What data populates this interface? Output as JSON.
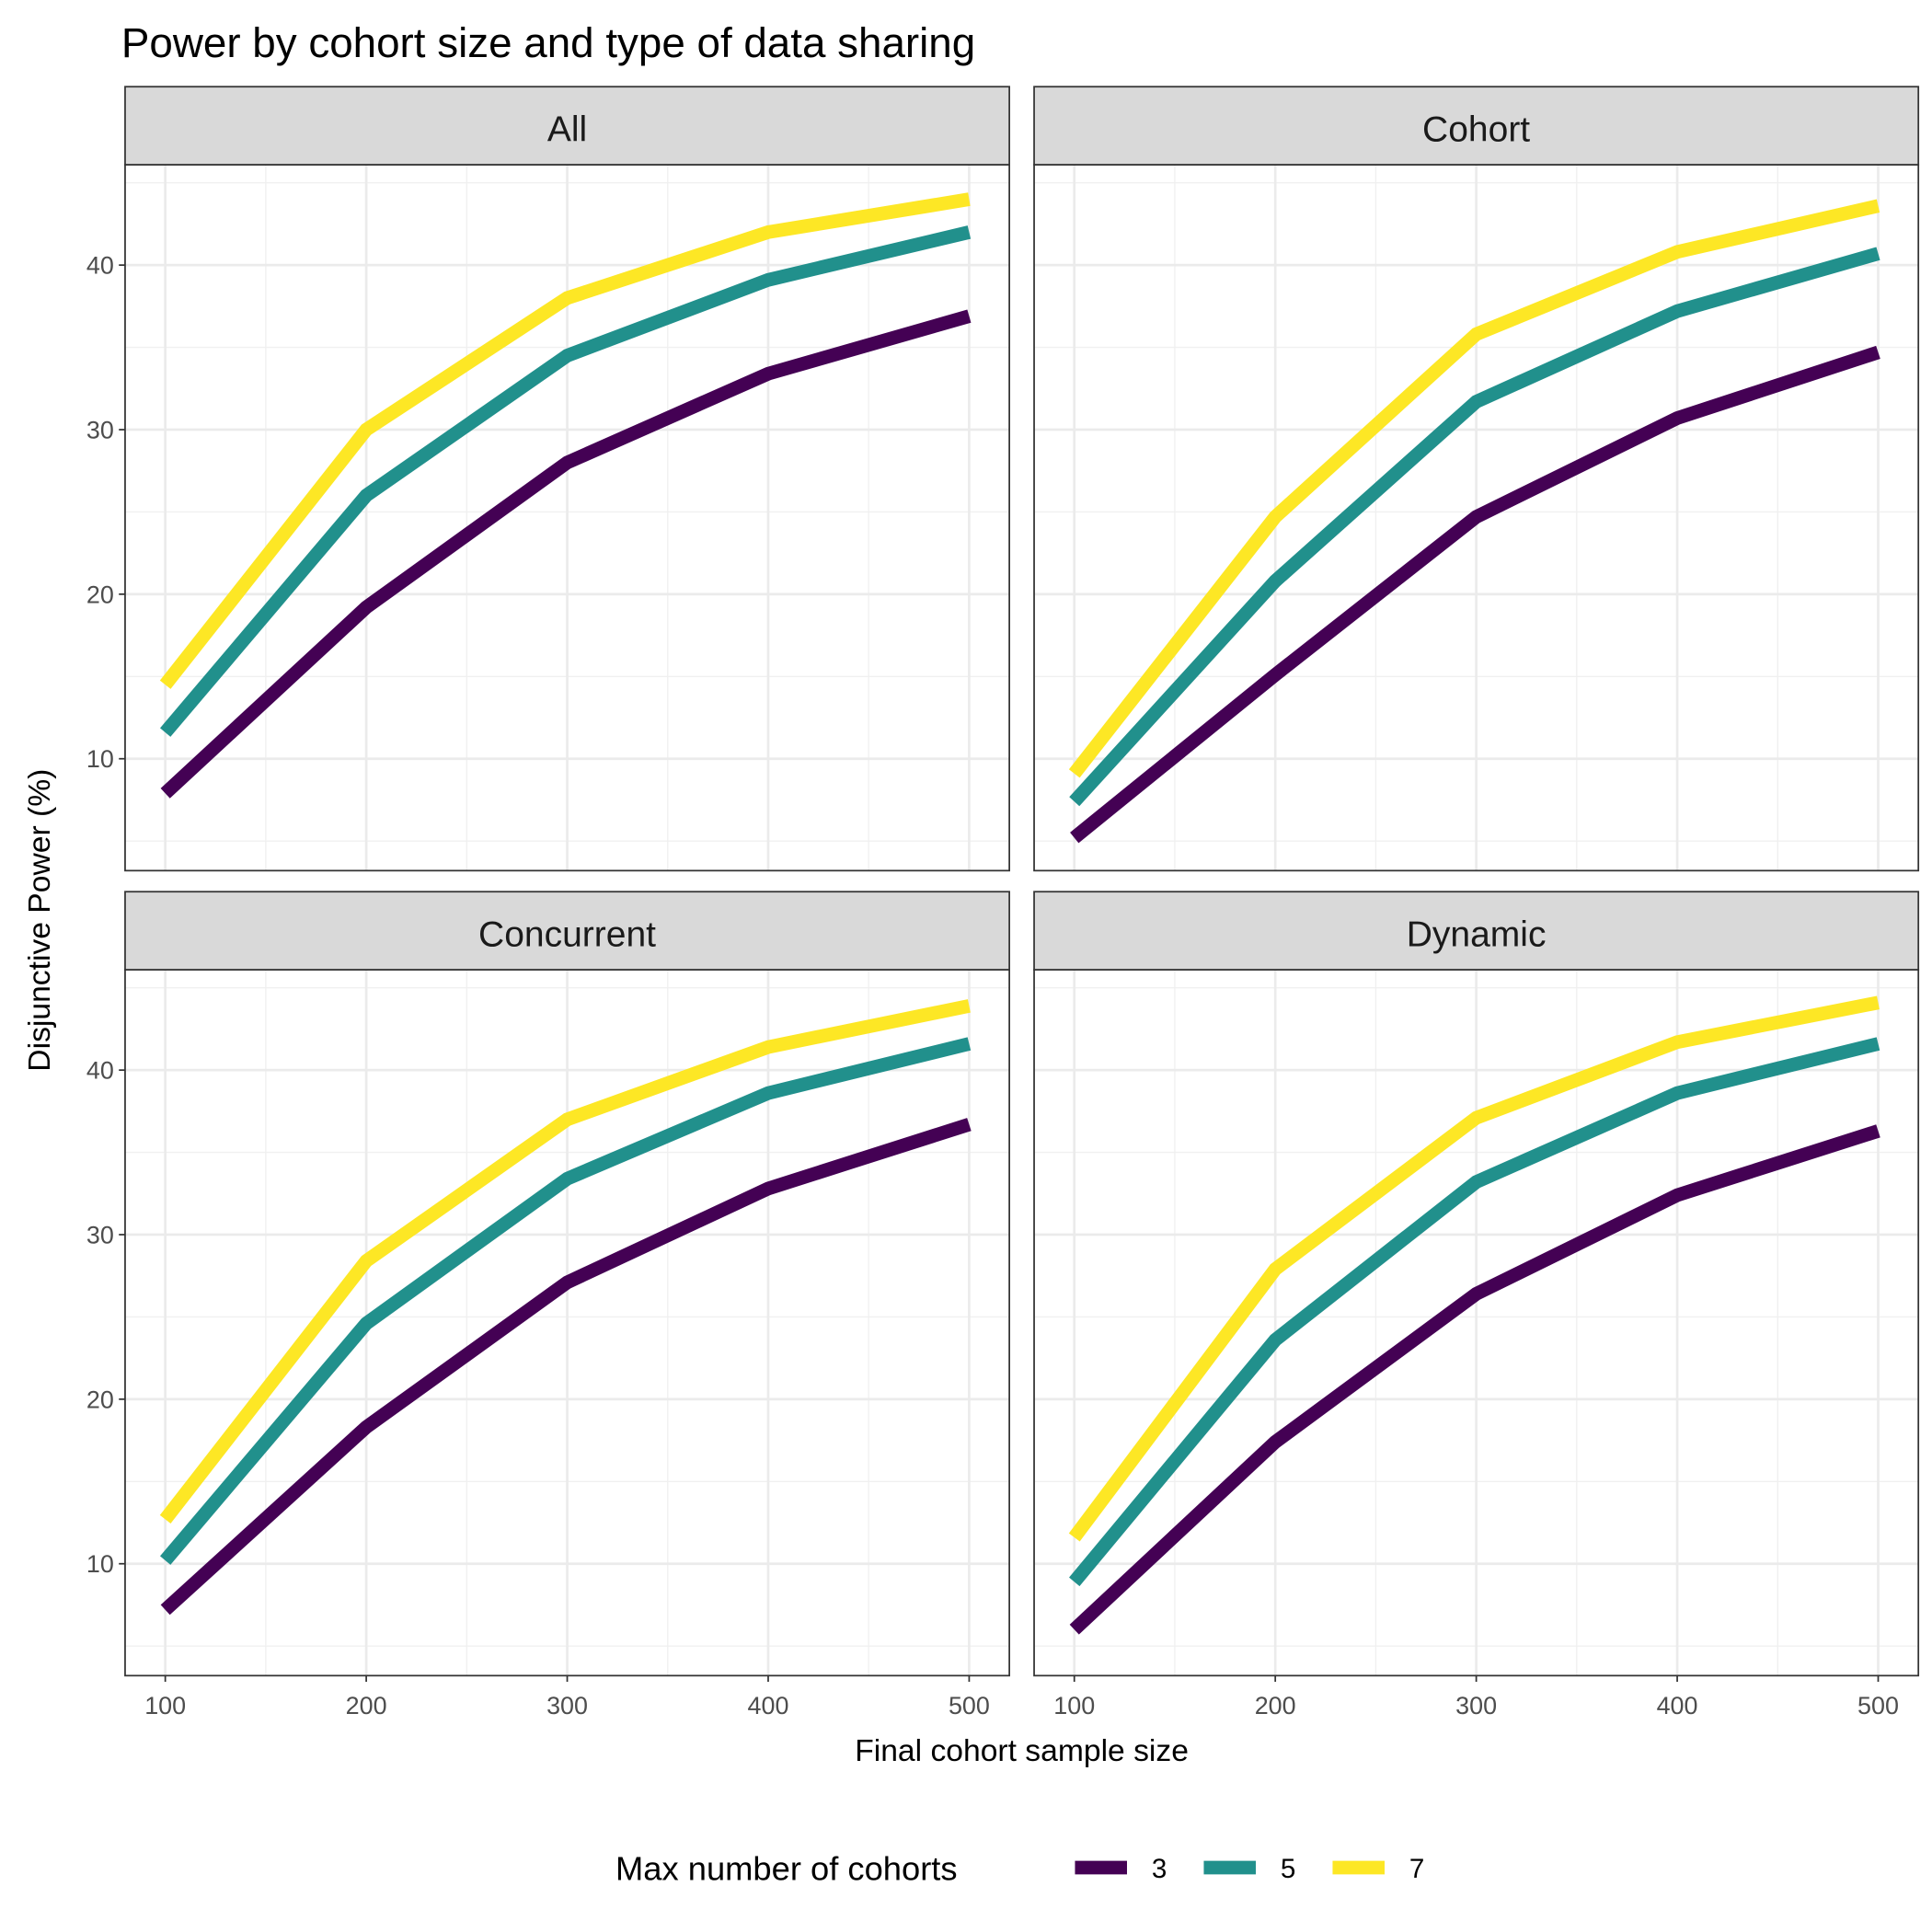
{
  "chart_data": {
    "type": "line",
    "title": "Power by cohort size and type of data sharing",
    "xlabel": "Final cohort sample size",
    "ylabel": "Disjunctive Power (%)",
    "x": [
      100,
      200,
      300,
      400,
      500
    ],
    "xlim": [
      80,
      520
    ],
    "ylim": [
      3.2,
      46.1
    ],
    "xticks": [
      100,
      200,
      300,
      400,
      500
    ],
    "yticks": [
      10,
      20,
      30,
      40
    ],
    "grid": true,
    "legend": {
      "title": "Max number of cohorts",
      "placement": "bottom",
      "entries": [
        "3",
        "5",
        "7"
      ]
    },
    "colors": {
      "3": "#440154",
      "5": "#21908C",
      "7": "#FDE725"
    },
    "panels": [
      {
        "name": "All",
        "series": [
          {
            "name": "3",
            "values": [
              7.9,
              19.2,
              28.0,
              33.4,
              36.9
            ]
          },
          {
            "name": "5",
            "values": [
              11.6,
              26.0,
              34.5,
              39.1,
              42.0
            ]
          },
          {
            "name": "7",
            "values": [
              14.5,
              30.0,
              38.0,
              42.0,
              44.0
            ]
          }
        ]
      },
      {
        "name": "Cohort",
        "series": [
          {
            "name": "3",
            "values": [
              5.2,
              15.1,
              24.7,
              30.7,
              34.7
            ]
          },
          {
            "name": "5",
            "values": [
              7.4,
              20.8,
              31.7,
              37.2,
              40.7
            ]
          },
          {
            "name": "7",
            "values": [
              9.1,
              24.7,
              35.8,
              40.8,
              43.6
            ]
          }
        ]
      },
      {
        "name": "Concurrent",
        "series": [
          {
            "name": "3",
            "values": [
              7.2,
              18.3,
              27.1,
              32.8,
              36.7
            ]
          },
          {
            "name": "5",
            "values": [
              10.2,
              24.6,
              33.4,
              38.6,
              41.6
            ]
          },
          {
            "name": "7",
            "values": [
              12.7,
              28.4,
              37.0,
              41.4,
              43.9
            ]
          }
        ]
      },
      {
        "name": "Dynamic",
        "series": [
          {
            "name": "3",
            "values": [
              6.0,
              17.4,
              26.4,
              32.4,
              36.3
            ]
          },
          {
            "name": "5",
            "values": [
              8.9,
              23.6,
              33.2,
              38.6,
              41.6
            ]
          },
          {
            "name": "7",
            "values": [
              11.6,
              27.9,
              37.1,
              41.7,
              44.1
            ]
          }
        ]
      }
    ]
  }
}
